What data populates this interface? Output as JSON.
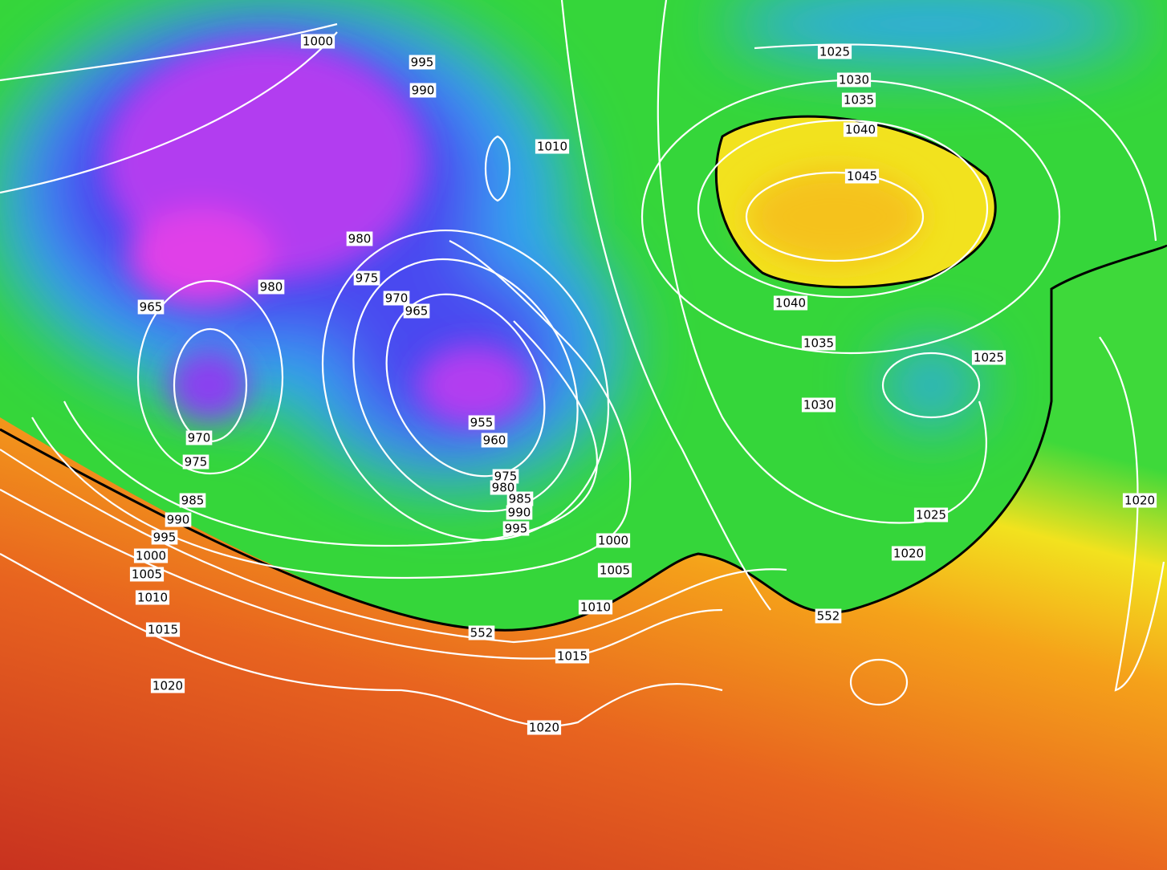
{
  "map": {
    "contour_labels": [
      "1000",
      "995",
      "990",
      "1010",
      "980",
      "975",
      "970",
      "965",
      "980",
      "965",
      "955",
      "960",
      "975",
      "980",
      "985",
      "990",
      "995",
      "970",
      "975",
      "985",
      "990",
      "995",
      "1000",
      "1005",
      "1010",
      "1015",
      "1020",
      "1000",
      "1005",
      "1010",
      "552",
      "1015",
      "1020",
      "1025",
      "1030",
      "1035",
      "1040",
      "1045",
      "1040",
      "1035",
      "1030",
      "1025",
      "1025",
      "1020",
      "552",
      "1020"
    ]
  }
}
